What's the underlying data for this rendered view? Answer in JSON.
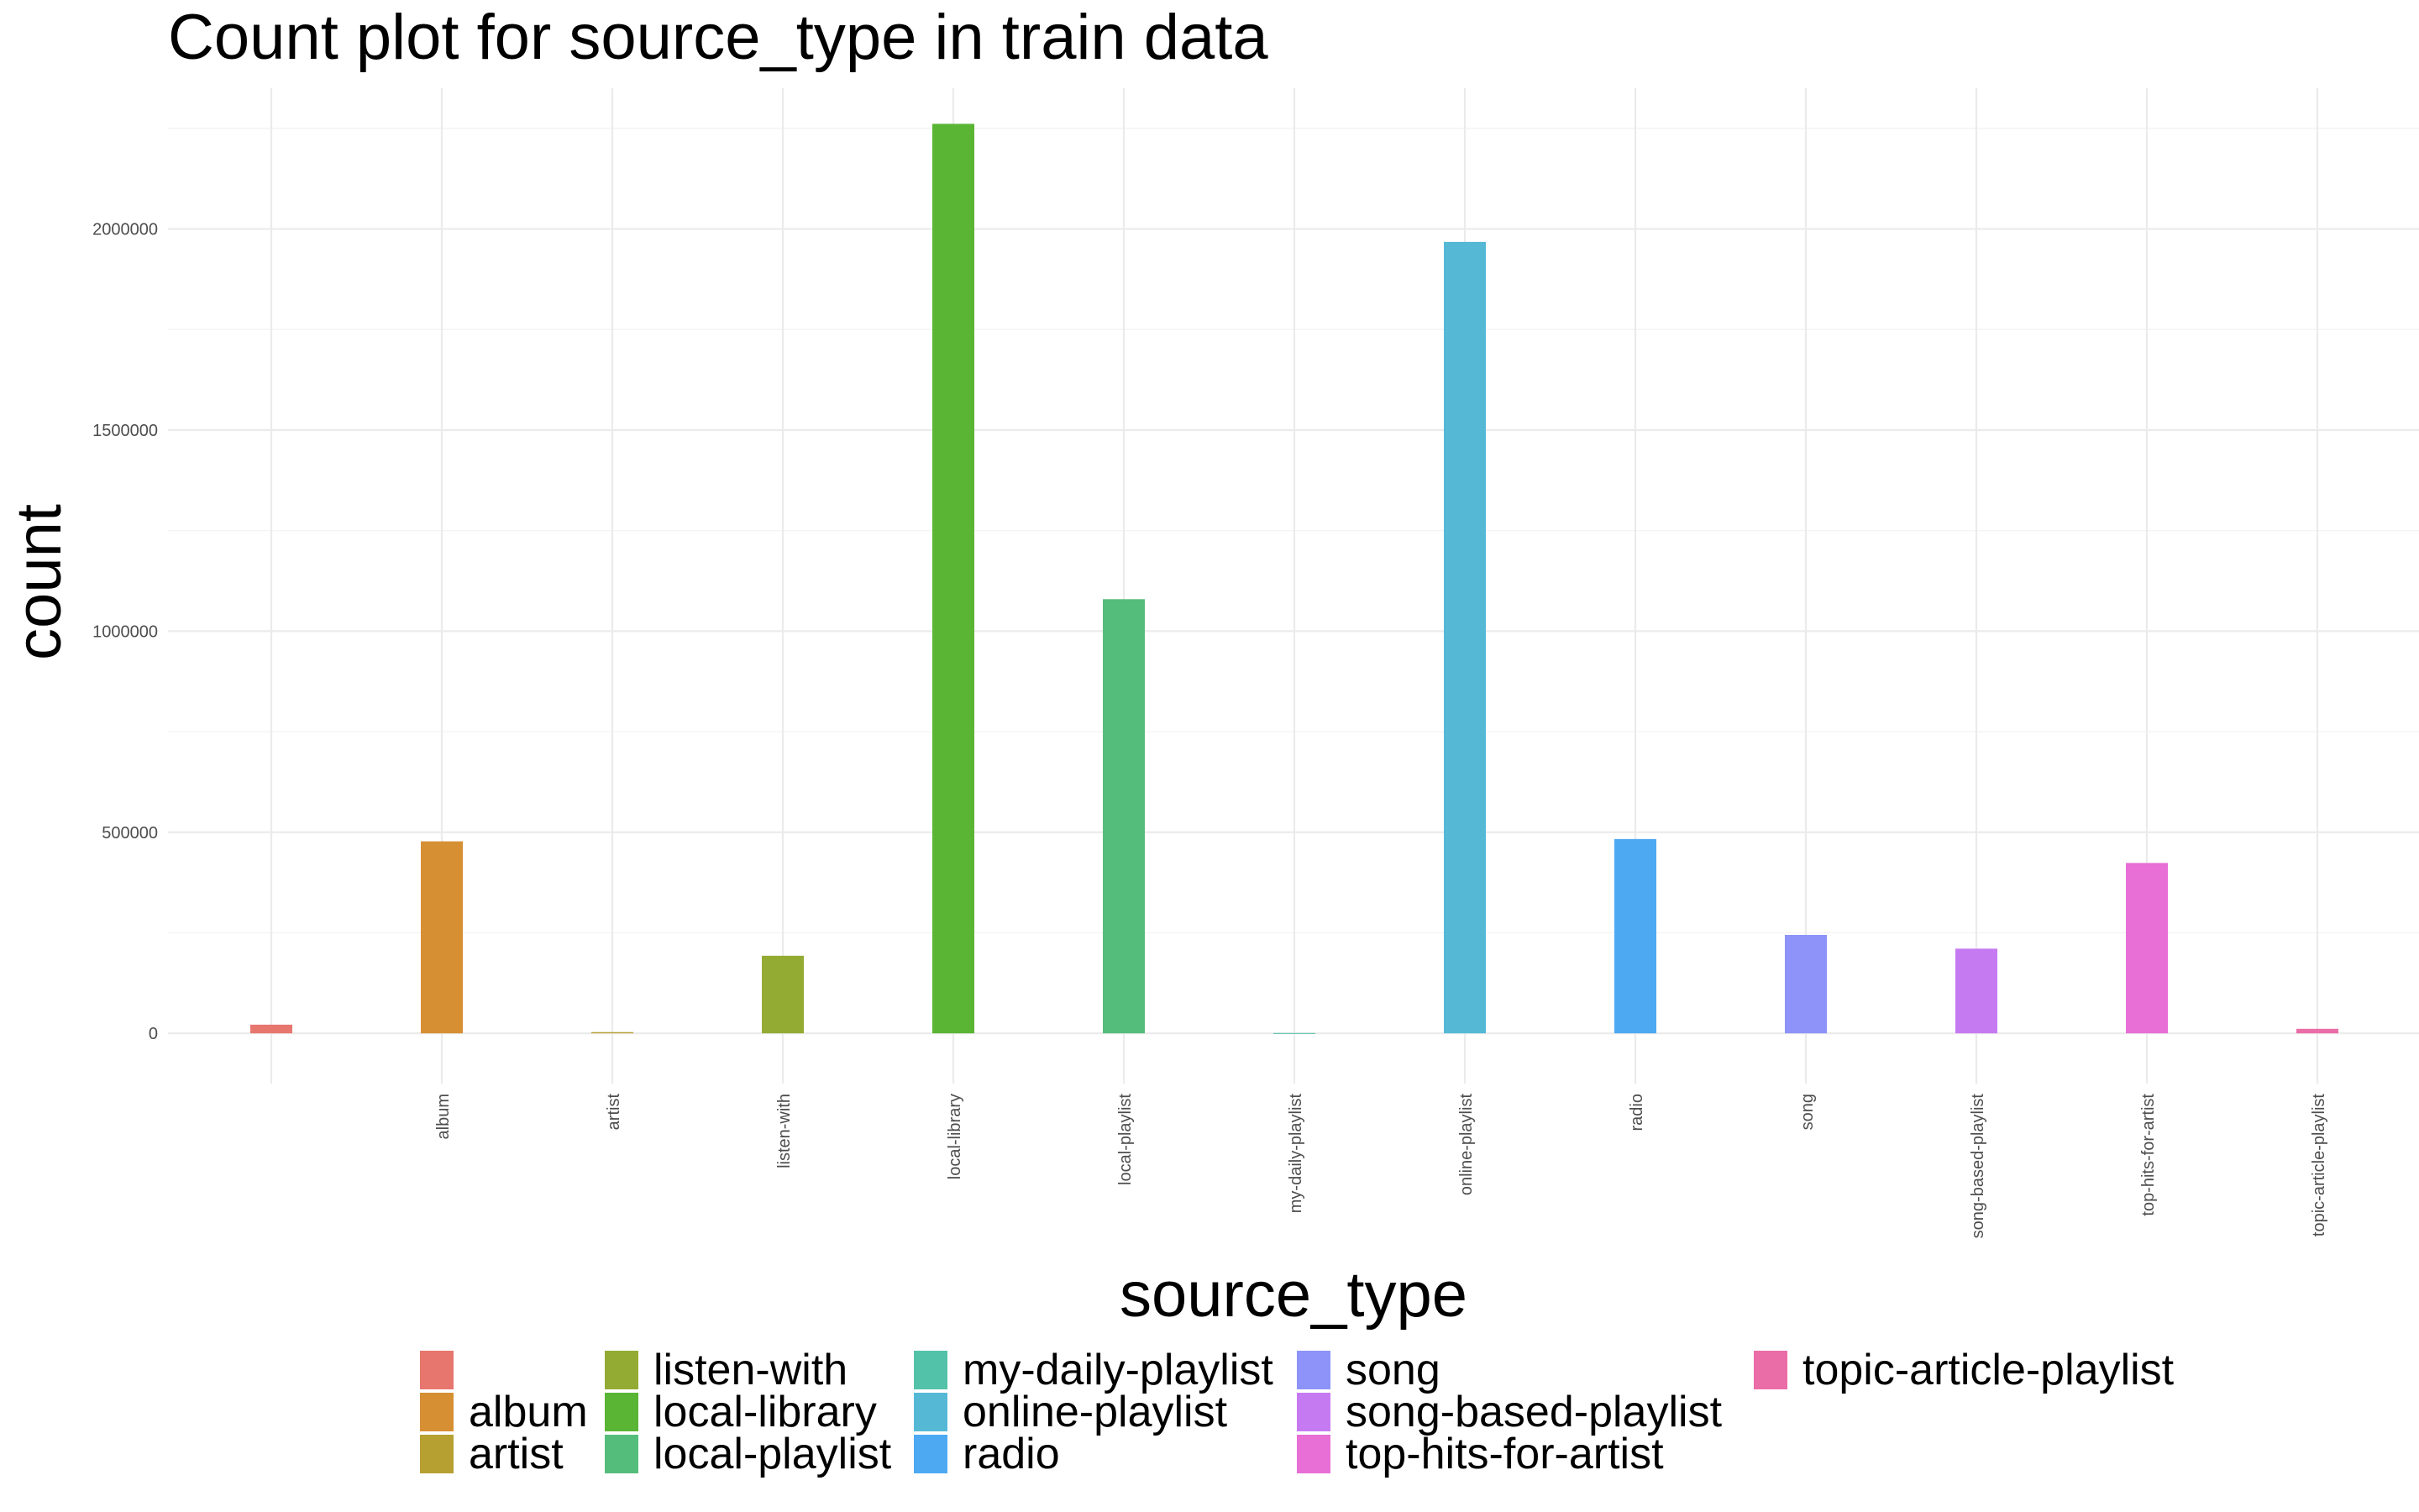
{
  "chart_data": {
    "type": "bar",
    "title": "Count plot for source_type in train data",
    "xlabel": "source_type",
    "ylabel": "count",
    "categories": [
      "",
      "album",
      "artist",
      "listen-with",
      "local-library",
      "local-playlist",
      "my-daily-playlist",
      "online-playlist",
      "radio",
      "song",
      "song-based-playlist",
      "top-hits-for-artist",
      "topic-article-playlist"
    ],
    "values": [
      21539,
      477344,
      3038,
      192842,
      2261399,
      1079503,
      663,
      1967924,
      483109,
      244722,
      210527,
      423614,
      11194
    ],
    "colors": [
      "#E7766E",
      "#D68F33",
      "#B7A032",
      "#93AB33",
      "#5AB535",
      "#55BD7C",
      "#52C2A9",
      "#55B9D6",
      "#4EA9F3",
      "#8D93F8",
      "#C67AF2",
      "#E76FD5",
      "#EB6DA7"
    ],
    "ylim": [
      -125000,
      2350000
    ],
    "yticks": [
      0,
      500000,
      1000000,
      1500000,
      2000000
    ],
    "ytick_labels": [
      "0",
      "500000",
      "1000000",
      "1500000",
      "2000000"
    ],
    "grid": true,
    "legend_position": "bottom",
    "legend": [
      "",
      "album",
      "artist",
      "listen-with",
      "local-library",
      "local-playlist",
      "my-daily-playlist",
      "online-playlist",
      "radio",
      "song",
      "song-based-playlist",
      "top-hits-for-artist",
      "topic-article-playlist"
    ]
  }
}
